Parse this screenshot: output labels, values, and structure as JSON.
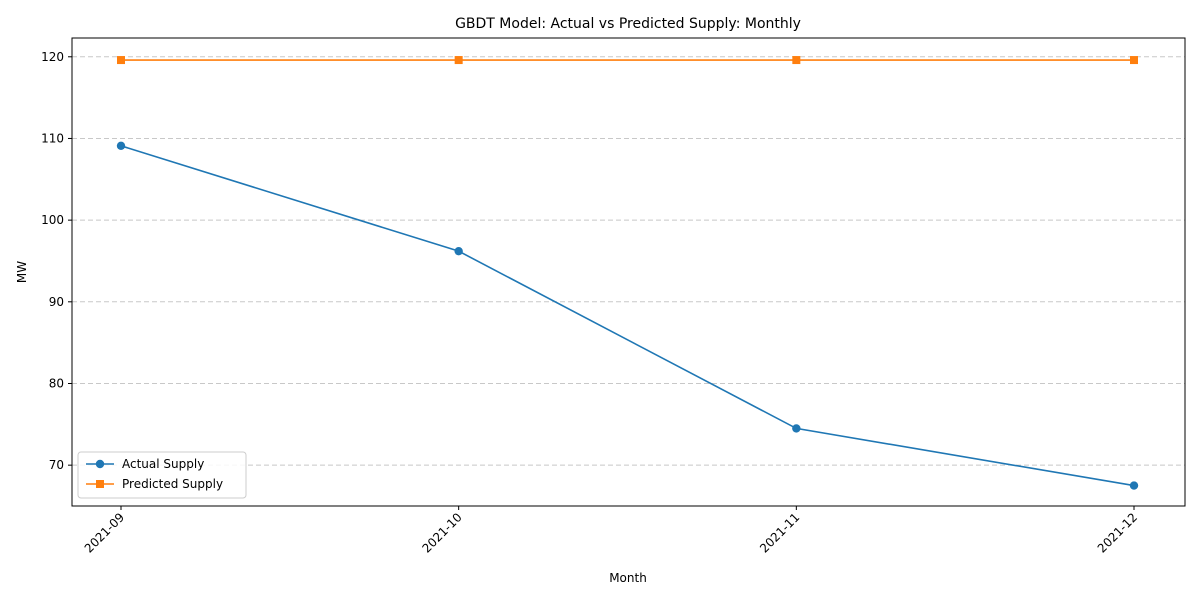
{
  "chart_data": {
    "type": "line",
    "title": "GBDT Model: Actual vs Predicted Supply: Monthly",
    "xlabel": "Month",
    "ylabel": "MW",
    "categories": [
      "2021-09",
      "2021-10",
      "2021-11",
      "2021-12"
    ],
    "ylim": [
      65,
      122.3
    ],
    "yticks": [
      70,
      80,
      90,
      100,
      110,
      120
    ],
    "grid": "y-dashed",
    "legend": "lower-left",
    "series": [
      {
        "name": "Actual Supply",
        "values": [
          109.1,
          96.2,
          74.5,
          67.5
        ],
        "color": "#1f77b4",
        "marker": "circle"
      },
      {
        "name": "Predicted Supply",
        "values": [
          119.6,
          119.6,
          119.6,
          119.6
        ],
        "color": "#ff7f0e",
        "marker": "square"
      }
    ]
  }
}
